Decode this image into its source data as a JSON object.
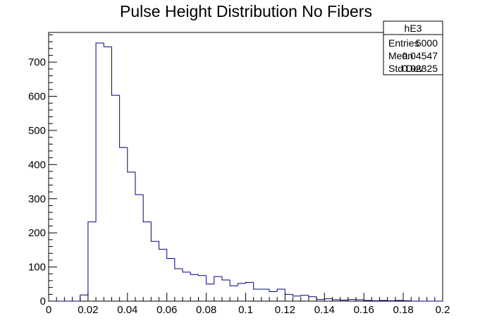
{
  "chart_data": {
    "type": "bar",
    "title": "Pulse Height Distribution No Fibers",
    "xlabel": "",
    "ylabel": "",
    "xlim": [
      0,
      0.2
    ],
    "ylim": [
      0,
      787
    ],
    "bin_width": 0.004,
    "bins_start": 0,
    "values": [
      0,
      0,
      0,
      0,
      18,
      232,
      756,
      745,
      603,
      450,
      378,
      312,
      232,
      175,
      152,
      125,
      95,
      85,
      78,
      75,
      50,
      72,
      62,
      45,
      52,
      55,
      35,
      35,
      28,
      35,
      20,
      15,
      17,
      13,
      5,
      7,
      4,
      3,
      5,
      4,
      2,
      1,
      2,
      1,
      2,
      1,
      0,
      0,
      0,
      0
    ],
    "x_ticks": [
      "0",
      "0.02",
      "0.04",
      "0.06",
      "0.08",
      "0.1",
      "0.12",
      "0.14",
      "0.16",
      "0.18",
      "0.2"
    ],
    "y_ticks": [
      "0",
      "100",
      "200",
      "300",
      "400",
      "500",
      "600",
      "700"
    ],
    "grid": false,
    "line_color": "#000080",
    "stats_box": {
      "name": "hE3",
      "rows": [
        {
          "label": "Entries",
          "value": "5000"
        },
        {
          "label": "Mean",
          "value": "0.04547"
        },
        {
          "label": "Std Dev",
          "value": "0.02325"
        }
      ]
    }
  }
}
